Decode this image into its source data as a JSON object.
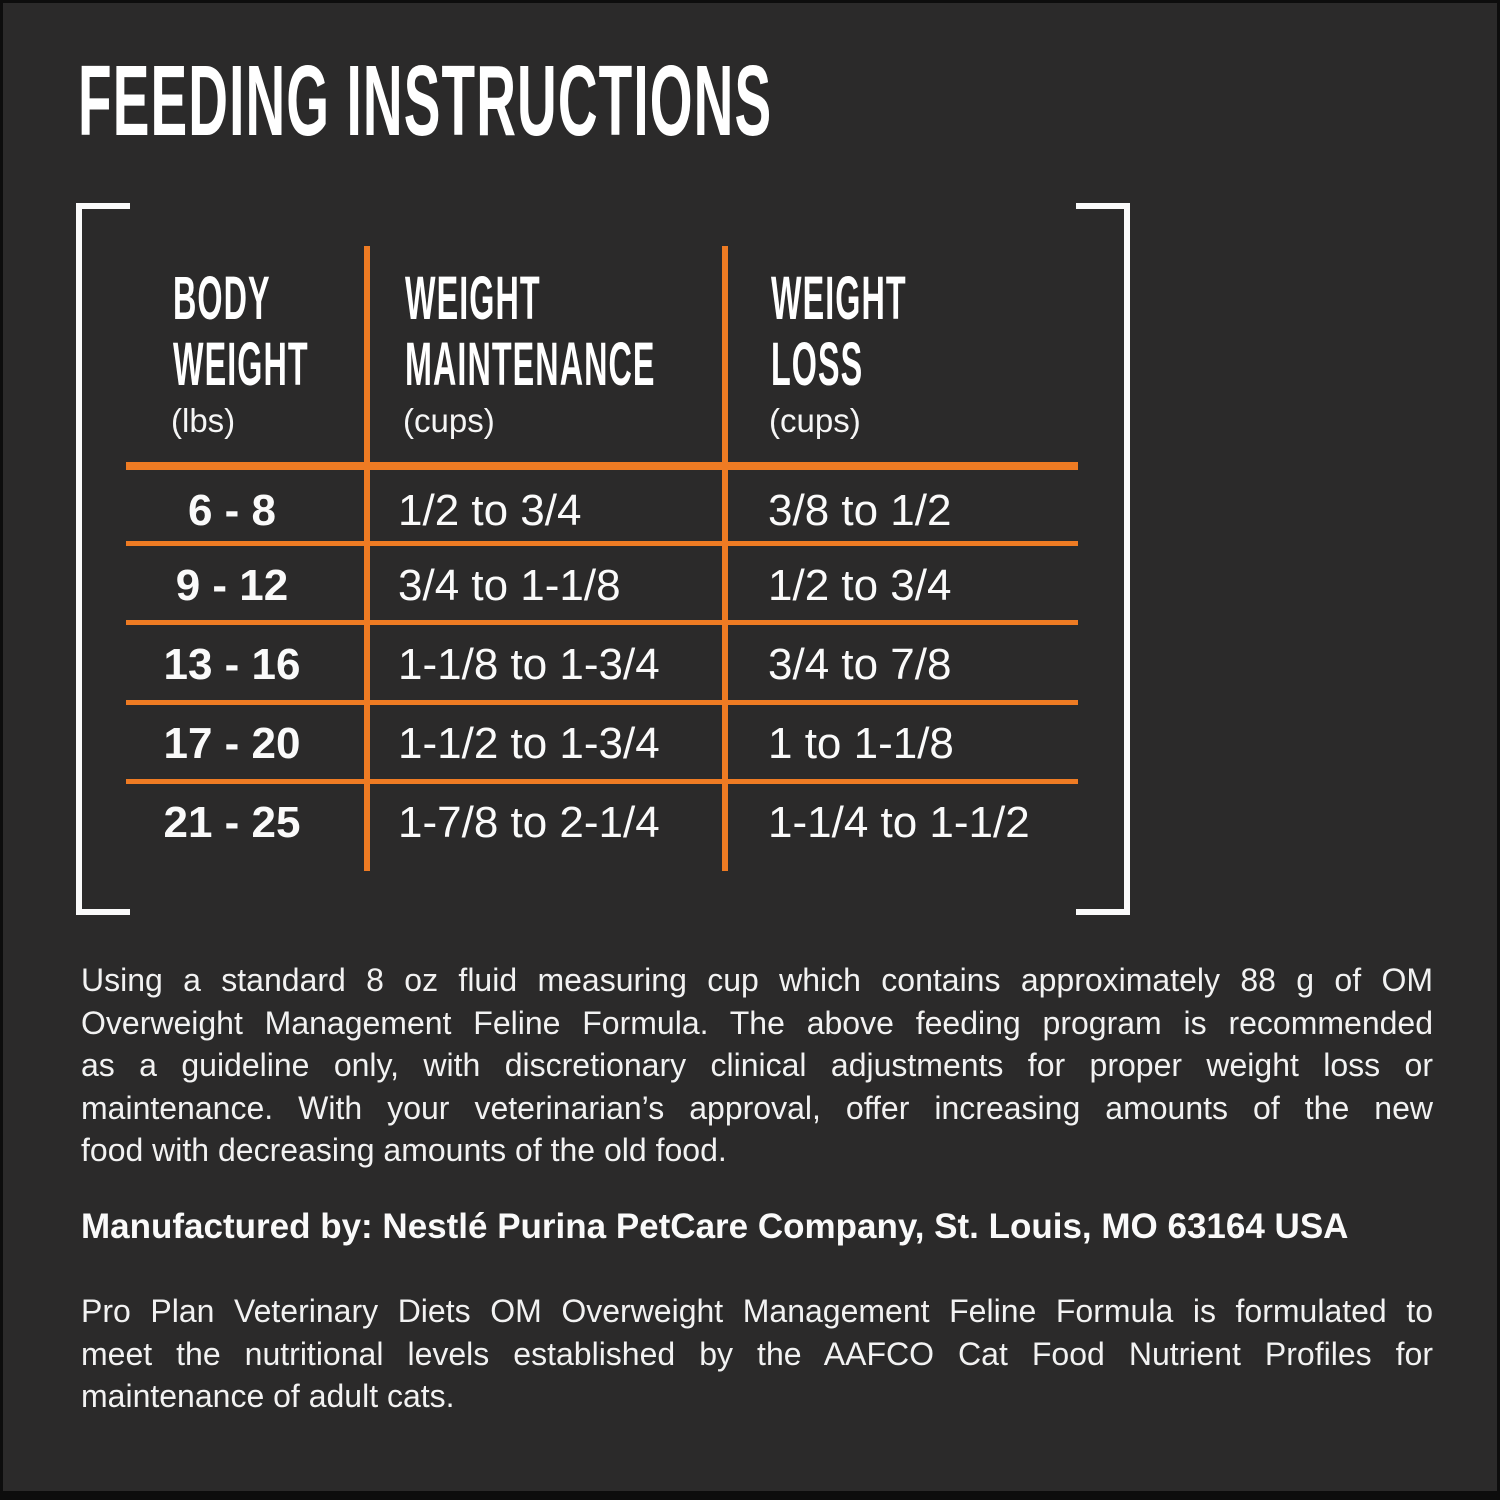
{
  "colors": {
    "background": "#2B2A2A",
    "accent_orange": "#EE7B23",
    "text_white": "#FFFFFF"
  },
  "header": {
    "title": "FEEDING INSTRUCTIONS"
  },
  "feeding_table": {
    "columns": [
      {
        "name_line1": "BODY",
        "name_line2": "WEIGHT",
        "unit": "(lbs)"
      },
      {
        "name_line1": "WEIGHT",
        "name_line2": "MAINTENANCE",
        "unit": "(cups)"
      },
      {
        "name_line1": "WEIGHT",
        "name_line2": "LOSS",
        "unit": "(cups)"
      }
    ],
    "rows": [
      {
        "body_weight_lbs": "6 - 8",
        "weight_maintenance_cups": "1/2 to 3/4",
        "weight_loss_cups": "3/8 to 1/2"
      },
      {
        "body_weight_lbs": "9 - 12",
        "weight_maintenance_cups": "3/4 to 1-1/8",
        "weight_loss_cups": "1/2 to 3/4"
      },
      {
        "body_weight_lbs": "13 - 16",
        "weight_maintenance_cups": "1-1/8 to 1-3/4",
        "weight_loss_cups": "3/4 to 7/8"
      },
      {
        "body_weight_lbs": "17 - 20",
        "weight_maintenance_cups": "1-1/2 to 1-3/4",
        "weight_loss_cups": "1 to 1-1/8"
      },
      {
        "body_weight_lbs": "21 - 25",
        "weight_maintenance_cups": "1-7/8 to 2-1/4",
        "weight_loss_cups": "1-1/4 to 1-1/2"
      }
    ]
  },
  "notes": {
    "usage_lines": [
      "Using a standard 8 oz fluid measuring cup which contains approximately 88 g of OM",
      "Overweight Management Feline Formula. The above feeding program is recommended",
      "as a guideline only, with discretionary clinical adjustments for proper weight loss or",
      "maintenance. With your veterinarian’s approval, offer increasing amounts of the new",
      "food with decreasing amounts of the old food."
    ],
    "manufactured_by": "Manufactured by: Nestlé Purina PetCare Company, St. Louis, MO 63164 USA",
    "aafco_lines": [
      "Pro Plan Veterinary Diets OM Overweight Management Feline Formula is formulated to",
      "meet the nutritional levels established by the AAFCO Cat Food Nutrient Profiles for",
      "maintenance of adult cats."
    ]
  }
}
